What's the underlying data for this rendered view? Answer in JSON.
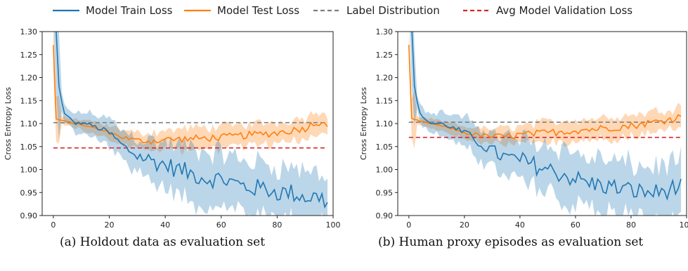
{
  "legend": [
    {
      "label": "Model Train Loss",
      "color": "#1f77b4",
      "style": "solid"
    },
    {
      "label": "Model Test Loss",
      "color": "#ff7f0e",
      "style": "solid"
    },
    {
      "label": "Label Distribution",
      "color": "#7f7f7f",
      "style": "dashed"
    },
    {
      "label": "Avg Model Validation Loss",
      "color": "#d62728",
      "style": "dashed"
    }
  ],
  "captions": [
    "(a) Holdout data as evaluation set",
    "(b) Human proxy episodes as evaluation set"
  ],
  "chart_data": [
    {
      "type": "line",
      "xlabel": "Epoch",
      "ylabel": "Cross Entropy Loss",
      "xlim": [
        -4,
        100
      ],
      "ylim": [
        0.9,
        1.3
      ],
      "xticks": [
        0,
        20,
        40,
        60,
        80,
        100
      ],
      "yticks": [
        0.9,
        0.95,
        1.0,
        1.05,
        1.1,
        1.15,
        1.2,
        1.25,
        1.3
      ],
      "grid": false,
      "hlines": [
        {
          "name": "Label Distribution",
          "y": 1.102,
          "color": "#7f7f7f"
        },
        {
          "name": "Avg Model Validation Loss",
          "y": 1.047,
          "color": "#d62728"
        }
      ],
      "train_key_points": [
        [
          0,
          1.42
        ],
        [
          2,
          1.18
        ],
        [
          4,
          1.12
        ],
        [
          8,
          1.1
        ],
        [
          12,
          1.1
        ],
        [
          16,
          1.09
        ],
        [
          20,
          1.08
        ],
        [
          25,
          1.05
        ],
        [
          30,
          1.03
        ],
        [
          35,
          1.02
        ],
        [
          40,
          1.01
        ],
        [
          45,
          1.0
        ],
        [
          50,
          0.99
        ],
        [
          55,
          0.98
        ],
        [
          60,
          0.98
        ],
        [
          65,
          0.97
        ],
        [
          70,
          0.96
        ],
        [
          75,
          0.96
        ],
        [
          80,
          0.95
        ],
        [
          85,
          0.95
        ],
        [
          90,
          0.94
        ],
        [
          95,
          0.94
        ],
        [
          98,
          0.93
        ]
      ],
      "train_band": 0.035,
      "test_key_points": [
        [
          0,
          1.27
        ],
        [
          1,
          1.11
        ],
        [
          4,
          1.105
        ],
        [
          8,
          1.1
        ],
        [
          15,
          1.09
        ],
        [
          20,
          1.08
        ],
        [
          25,
          1.07
        ],
        [
          30,
          1.063
        ],
        [
          35,
          1.062
        ],
        [
          40,
          1.065
        ],
        [
          50,
          1.067
        ],
        [
          60,
          1.07
        ],
        [
          70,
          1.075
        ],
        [
          80,
          1.08
        ],
        [
          85,
          1.085
        ],
        [
          90,
          1.09
        ],
        [
          93,
          1.1
        ],
        [
          96,
          1.105
        ],
        [
          98,
          1.1
        ]
      ],
      "test_band": 0.018
    },
    {
      "type": "line",
      "xlabel": "Epoch",
      "ylabel": "Cross Entropy Loss",
      "xlim": [
        -4,
        100
      ],
      "ylim": [
        0.9,
        1.3
      ],
      "xticks": [
        0,
        20,
        40,
        60,
        80,
        100
      ],
      "yticks": [
        0.9,
        0.95,
        1.0,
        1.05,
        1.1,
        1.15,
        1.2,
        1.25,
        1.3
      ],
      "grid": false,
      "hlines": [
        {
          "name": "Label Distribution",
          "y": 1.103,
          "color": "#7f7f7f"
        },
        {
          "name": "Avg Model Validation Loss",
          "y": 1.07,
          "color": "#d62728"
        }
      ],
      "train_key_points": [
        [
          0,
          1.45
        ],
        [
          2,
          1.18
        ],
        [
          4,
          1.12
        ],
        [
          8,
          1.1
        ],
        [
          12,
          1.1
        ],
        [
          16,
          1.09
        ],
        [
          20,
          1.08
        ],
        [
          25,
          1.06
        ],
        [
          30,
          1.04
        ],
        [
          35,
          1.025
        ],
        [
          40,
          1.02
        ],
        [
          45,
          1.01
        ],
        [
          50,
          1.0
        ],
        [
          55,
          0.99
        ],
        [
          60,
          0.98
        ],
        [
          65,
          0.97
        ],
        [
          70,
          0.965
        ],
        [
          75,
          0.96
        ],
        [
          80,
          0.955
        ],
        [
          85,
          0.95
        ],
        [
          90,
          0.95
        ],
        [
          95,
          0.96
        ],
        [
          98,
          0.96
        ]
      ],
      "train_band": 0.035,
      "test_key_points": [
        [
          0,
          1.27
        ],
        [
          1,
          1.11
        ],
        [
          4,
          1.105
        ],
        [
          8,
          1.1
        ],
        [
          15,
          1.09
        ],
        [
          20,
          1.08
        ],
        [
          25,
          1.075
        ],
        [
          30,
          1.072
        ],
        [
          35,
          1.072
        ],
        [
          40,
          1.075
        ],
        [
          50,
          1.08
        ],
        [
          60,
          1.085
        ],
        [
          70,
          1.09
        ],
        [
          80,
          1.095
        ],
        [
          85,
          1.1
        ],
        [
          90,
          1.105
        ],
        [
          95,
          1.11
        ],
        [
          97,
          1.12
        ],
        [
          99,
          1.1
        ]
      ],
      "test_band": 0.018
    }
  ]
}
